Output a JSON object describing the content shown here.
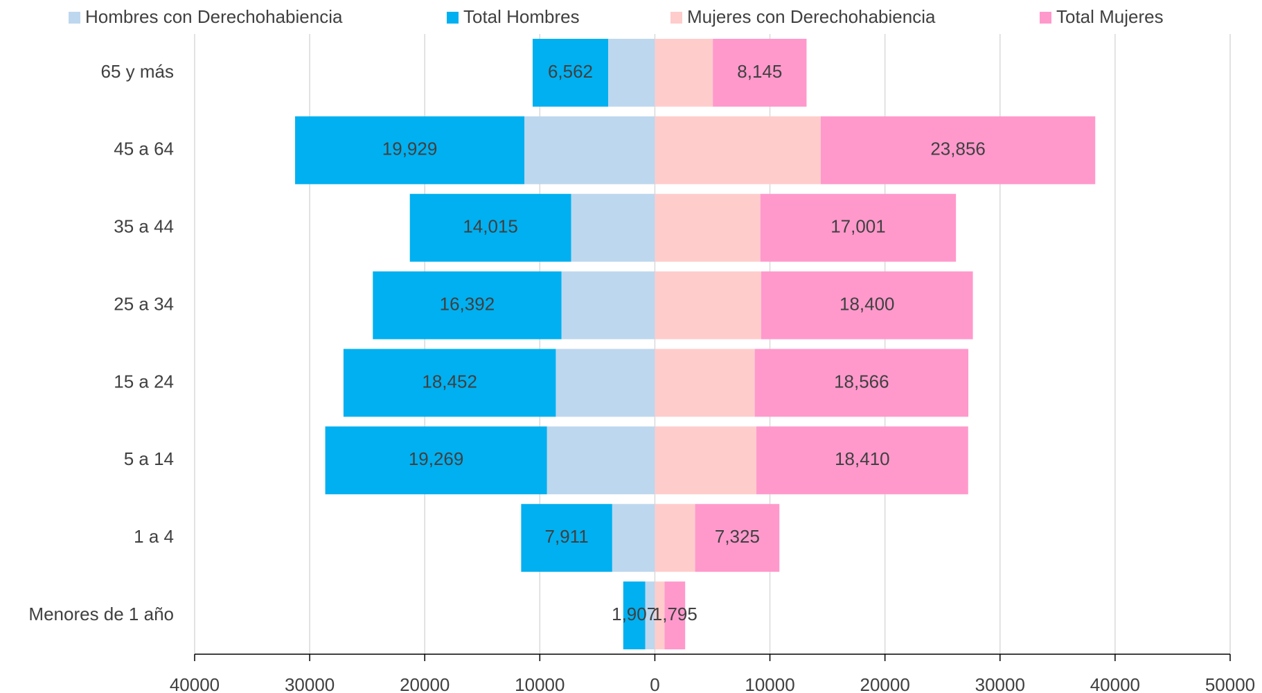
{
  "chart_data": {
    "type": "bar",
    "orientation": "horizontal",
    "stacked": true,
    "categories": [
      "65 y más",
      "45 a 64",
      "35 a 44",
      "25 a 34",
      "15 a 24",
      "5 a 14",
      "1 a 4",
      "Menores de 1 año"
    ],
    "series": [
      {
        "name": "Hombres con Derechohabiencia",
        "color": "#bdd7ee",
        "values": [
          -4060,
          -11340,
          -7280,
          -8120,
          -8610,
          -9380,
          -3710,
          -840
        ]
      },
      {
        "name": "Total Hombres",
        "color": "#00b0f0",
        "values": [
          -6562,
          -19929,
          -14015,
          -16392,
          -18452,
          -19269,
          -7911,
          -1907
        ],
        "value_labels": [
          "6,562",
          "19,929",
          "14,015",
          "16,392",
          "18,452",
          "19,269",
          "7,911",
          "1,907"
        ]
      },
      {
        "name": "Mujeres con Derechohabiencia",
        "color": "#ffcccc",
        "values": [
          5040,
          14420,
          9170,
          9240,
          8680,
          8820,
          3500,
          840
        ]
      },
      {
        "name": "Total Mujeres",
        "color": "#ff99cc",
        "values": [
          8145,
          23856,
          17001,
          18400,
          18566,
          18410,
          7325,
          1795
        ],
        "value_labels": [
          "8,145",
          "23,856",
          "17,001",
          "18,400",
          "18,566",
          "18,410",
          "7,325",
          "1,795"
        ]
      }
    ],
    "xlim": [
      -40000,
      50000
    ],
    "xticks": [
      {
        "value": -40000,
        "label": "40000"
      },
      {
        "value": -30000,
        "label": "30000"
      },
      {
        "value": -20000,
        "label": "20000"
      },
      {
        "value": -10000,
        "label": "10000"
      },
      0,
      10000,
      20000,
      30000,
      40000,
      50000
    ],
    "grid": true,
    "legend": "top"
  }
}
